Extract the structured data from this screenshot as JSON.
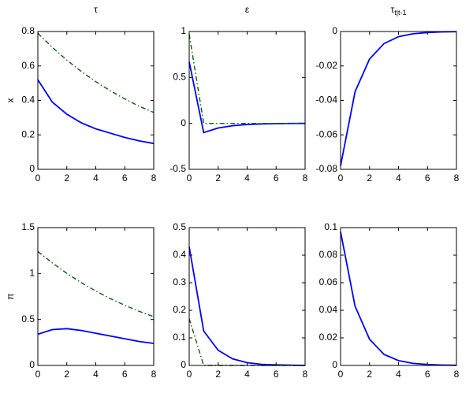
{
  "chart_data": [
    {
      "type": "line",
      "title": "τ",
      "ylabel": "x",
      "x": [
        0,
        1,
        2,
        3,
        4,
        5,
        6,
        7,
        8
      ],
      "xlim": [
        0,
        8
      ],
      "xticks": [
        0,
        2,
        4,
        6,
        8
      ],
      "ylim": [
        0,
        0.8
      ],
      "yticks": [
        0,
        0.2,
        0.4,
        0.6,
        0.8
      ],
      "series": [
        {
          "color": "#0000ff",
          "style": "solid",
          "values": [
            0.52,
            0.39,
            0.32,
            0.27,
            0.235,
            0.21,
            0.185,
            0.165,
            0.15
          ]
        },
        {
          "color": "#006400",
          "style": "dashdot",
          "values": [
            0.79,
            0.708,
            0.634,
            0.568,
            0.509,
            0.456,
            0.409,
            0.366,
            0.33
          ]
        }
      ]
    },
    {
      "type": "line",
      "title": "ε",
      "x": [
        0,
        1,
        2,
        3,
        4,
        5,
        6,
        7,
        8
      ],
      "xlim": [
        0,
        8
      ],
      "xticks": [
        0,
        2,
        4,
        6,
        8
      ],
      "ylim": [
        -0.5,
        1
      ],
      "yticks": [
        -0.5,
        0,
        0.5,
        1
      ],
      "series": [
        {
          "color": "#0000ff",
          "style": "solid",
          "values": [
            0.67,
            -0.1,
            -0.05,
            -0.025,
            -0.012,
            -0.006,
            -0.003,
            -0.001,
            0
          ]
        },
        {
          "color": "#006400",
          "style": "dashdot",
          "values": [
            0.97,
            0,
            0,
            0,
            0,
            0,
            0,
            0,
            0
          ]
        }
      ]
    },
    {
      "type": "line",
      "title": "τ",
      "title_sub": "t|t-1",
      "x": [
        0,
        1,
        2,
        3,
        4,
        5,
        6,
        7,
        8
      ],
      "xlim": [
        0,
        8
      ],
      "xticks": [
        0,
        2,
        4,
        6,
        8
      ],
      "ylim": [
        -0.08,
        0
      ],
      "yticks": [
        -0.08,
        -0.06,
        -0.04,
        -0.02,
        0
      ],
      "series": [
        {
          "color": "#0000ff",
          "style": "solid",
          "values": [
            -0.078,
            -0.035,
            -0.016,
            -0.007,
            -0.003,
            -0.0013,
            -0.0006,
            -0.0002,
            -0.0001
          ]
        }
      ]
    },
    {
      "type": "line",
      "ylabel": "π",
      "x": [
        0,
        1,
        2,
        3,
        4,
        5,
        6,
        7,
        8
      ],
      "xlim": [
        0,
        8
      ],
      "xticks": [
        0,
        2,
        4,
        6,
        8
      ],
      "ylim": [
        0,
        1.5
      ],
      "yticks": [
        0,
        0.5,
        1,
        1.5
      ],
      "series": [
        {
          "color": "#0000ff",
          "style": "solid",
          "values": [
            0.34,
            0.39,
            0.4,
            0.38,
            0.35,
            0.32,
            0.29,
            0.26,
            0.24
          ]
        },
        {
          "color": "#006400",
          "style": "dashdot",
          "values": [
            1.24,
            1.115,
            1.002,
            0.901,
            0.81,
            0.728,
            0.655,
            0.589,
            0.53
          ]
        }
      ]
    },
    {
      "type": "line",
      "x": [
        0,
        1,
        2,
        3,
        4,
        5,
        6,
        7,
        8
      ],
      "xlim": [
        0,
        8
      ],
      "xticks": [
        0,
        2,
        4,
        6,
        8
      ],
      "ylim": [
        0,
        0.5
      ],
      "yticks": [
        0,
        0.1,
        0.2,
        0.3,
        0.4,
        0.5
      ],
      "series": [
        {
          "color": "#0000ff",
          "style": "solid",
          "values": [
            0.43,
            0.125,
            0.055,
            0.024,
            0.01,
            0.004,
            0.002,
            0.001,
            0
          ]
        },
        {
          "color": "#006400",
          "style": "dashdot",
          "values": [
            0.17,
            0,
            0,
            0,
            0,
            0,
            0,
            0,
            0
          ]
        }
      ]
    },
    {
      "type": "line",
      "x": [
        0,
        1,
        2,
        3,
        4,
        5,
        6,
        7,
        8
      ],
      "xlim": [
        0,
        8
      ],
      "xticks": [
        0,
        2,
        4,
        6,
        8
      ],
      "ylim": [
        0,
        0.1
      ],
      "yticks": [
        0,
        0.02,
        0.04,
        0.06,
        0.08,
        0.1
      ],
      "series": [
        {
          "color": "#0000ff",
          "style": "solid",
          "values": [
            0.097,
            0.043,
            0.019,
            0.008,
            0.0035,
            0.0015,
            0.0007,
            0.0003,
            0.0001
          ]
        }
      ]
    }
  ]
}
